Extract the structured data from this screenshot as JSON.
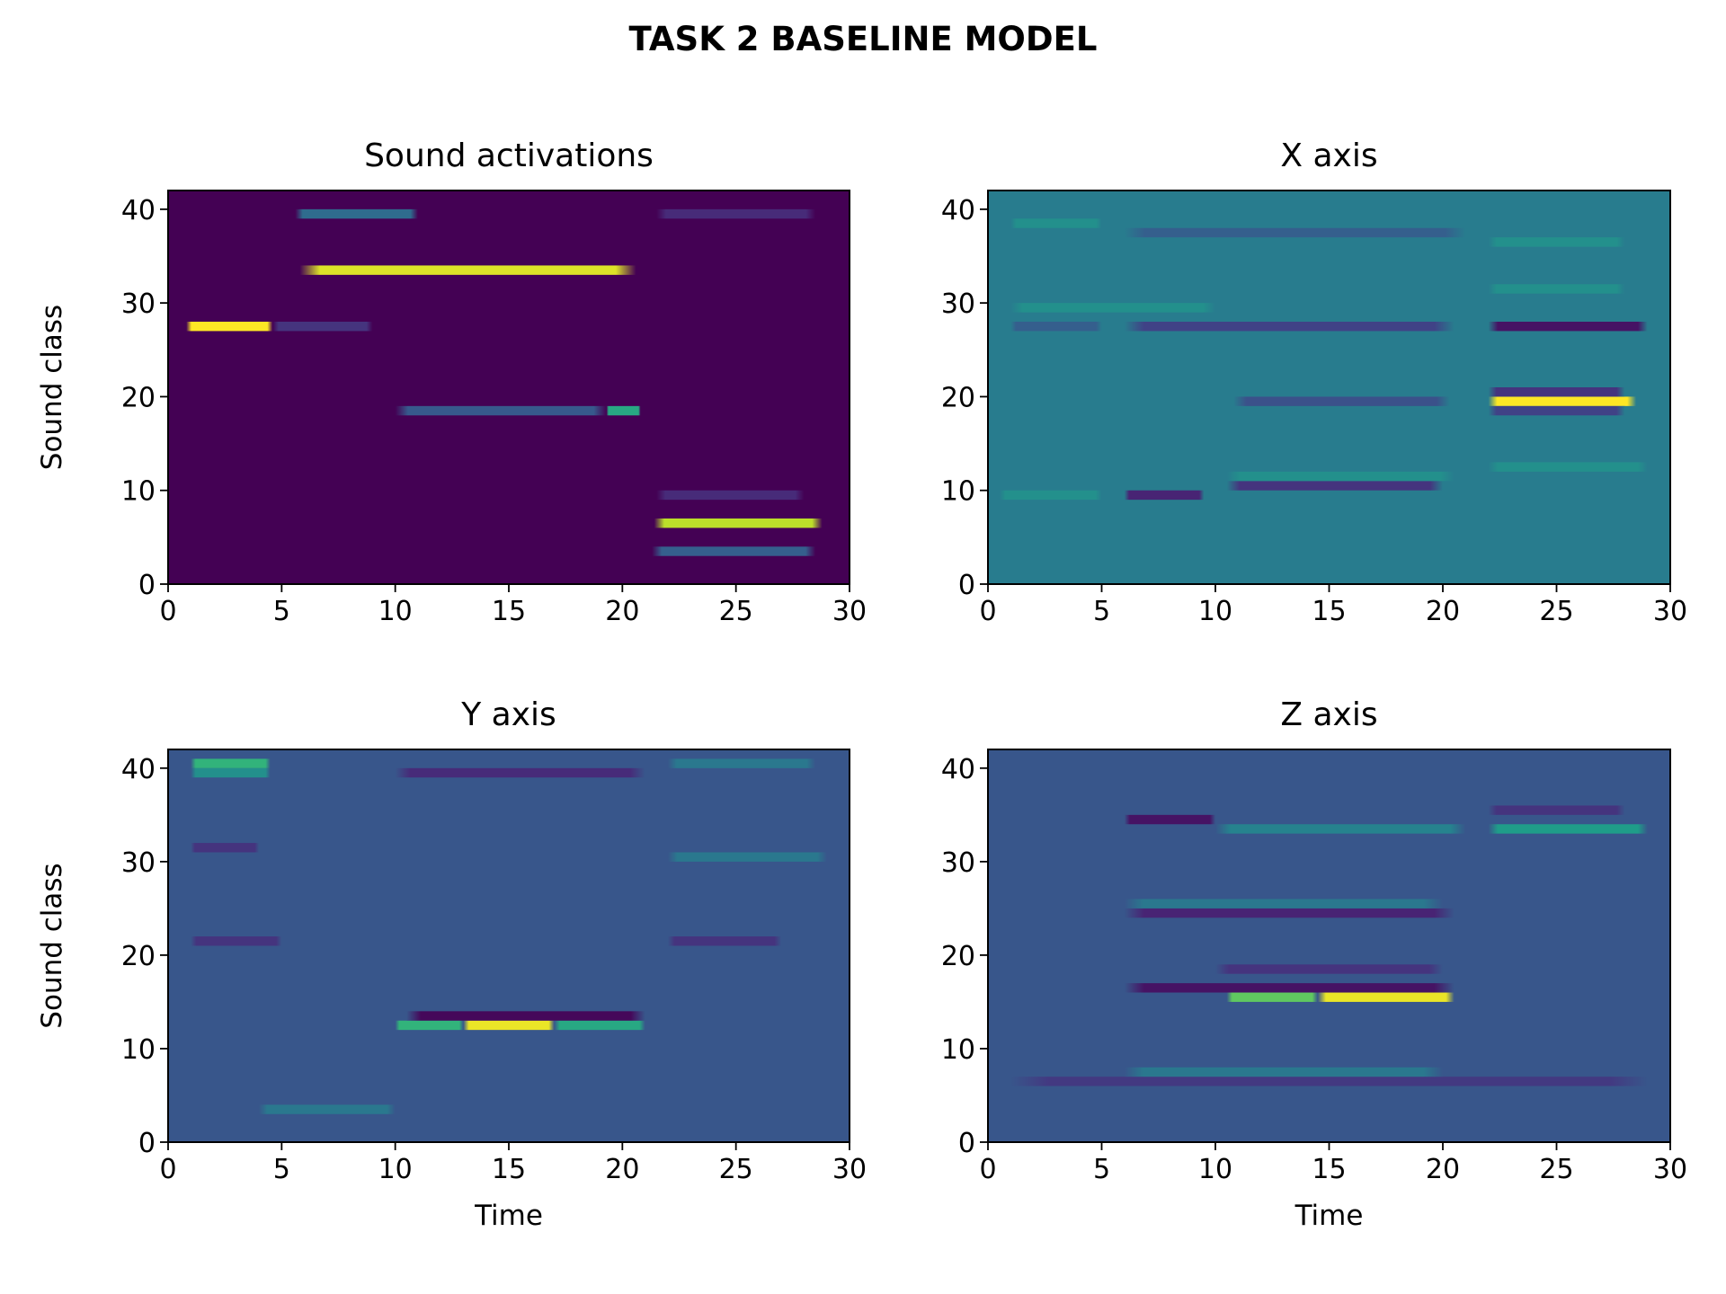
{
  "chart_data": {
    "type": "heatmap",
    "title": "TASK 2 BASELINE MODEL",
    "colormap": "viridis",
    "panels": [
      {
        "title": "Sound activations",
        "xlabel": "",
        "ylabel": "Sound class",
        "xlim": [
          0,
          30
        ],
        "ylim": [
          0,
          42
        ],
        "xticks": [
          0,
          5,
          10,
          15,
          20,
          25,
          30
        ],
        "yticks": [
          0,
          10,
          20,
          30,
          40
        ],
        "background": 0.0,
        "bands": [
          {
            "class": 27,
            "t0": 0.8,
            "t1": 4.6,
            "value": 1.0
          },
          {
            "class": 27,
            "t0": 4.6,
            "t1": 9.0,
            "value": 0.15
          },
          {
            "class": 33,
            "t0": 5.8,
            "t1": 20.6,
            "value": 0.95
          },
          {
            "class": 39,
            "t0": 5.6,
            "t1": 11.0,
            "value": 0.35
          },
          {
            "class": 18,
            "t0": 10.0,
            "t1": 19.3,
            "value": 0.28
          },
          {
            "class": 18,
            "t0": 19.3,
            "t1": 20.8,
            "value": 0.6
          },
          {
            "class": 6,
            "t0": 21.4,
            "t1": 28.8,
            "value": 0.9
          },
          {
            "class": 3,
            "t0": 21.3,
            "t1": 28.5,
            "value": 0.3
          },
          {
            "class": 9,
            "t0": 21.5,
            "t1": 28.0,
            "value": 0.12
          },
          {
            "class": 39,
            "t0": 21.5,
            "t1": 28.5,
            "value": 0.12
          }
        ]
      },
      {
        "title": "X axis",
        "xlabel": "",
        "ylabel": "",
        "xlim": [
          0,
          30
        ],
        "ylim": [
          0,
          42
        ],
        "xticks": [
          0,
          5,
          10,
          15,
          20,
          25,
          30
        ],
        "yticks": [
          0,
          10,
          20,
          30,
          40
        ],
        "background": 0.42,
        "bands": [
          {
            "class": 19,
            "t0": 22.0,
            "t1": 28.5,
            "value": 1.0
          },
          {
            "class": 20,
            "t0": 22.0,
            "t1": 28.0,
            "value": 0.15
          },
          {
            "class": 18,
            "t0": 22.0,
            "t1": 28.0,
            "value": 0.2
          },
          {
            "class": 19,
            "t0": 10.8,
            "t1": 20.3,
            "value": 0.25
          },
          {
            "class": 27,
            "t0": 1.0,
            "t1": 5.0,
            "value": 0.3
          },
          {
            "class": 27,
            "t0": 6.0,
            "t1": 20.5,
            "value": 0.2
          },
          {
            "class": 27,
            "t0": 22.0,
            "t1": 29.0,
            "value": 0.05
          },
          {
            "class": 9,
            "t0": 6.0,
            "t1": 9.5,
            "value": 0.1
          },
          {
            "class": 9,
            "t0": 0.5,
            "t1": 5.0,
            "value": 0.5
          },
          {
            "class": 10,
            "t0": 10.5,
            "t1": 20.0,
            "value": 0.15
          },
          {
            "class": 11,
            "t0": 10.5,
            "t1": 20.5,
            "value": 0.5
          },
          {
            "class": 37,
            "t0": 6.0,
            "t1": 21.0,
            "value": 0.3
          },
          {
            "class": 36,
            "t0": 22.0,
            "t1": 28.0,
            "value": 0.5
          },
          {
            "class": 38,
            "t0": 1.0,
            "t1": 5.0,
            "value": 0.5
          },
          {
            "class": 12,
            "t0": 22.0,
            "t1": 29.0,
            "value": 0.5
          },
          {
            "class": 29,
            "t0": 1.0,
            "t1": 10.0,
            "value": 0.5
          },
          {
            "class": 31,
            "t0": 22.0,
            "t1": 28.0,
            "value": 0.5
          }
        ]
      },
      {
        "title": "Y axis",
        "xlabel": "Time",
        "ylabel": "Sound class",
        "xlim": [
          0,
          30
        ],
        "ylim": [
          0,
          42
        ],
        "xticks": [
          0,
          5,
          10,
          15,
          20,
          25,
          30
        ],
        "yticks": [
          0,
          10,
          20,
          30,
          40
        ],
        "background": 0.27,
        "bands": [
          {
            "class": 40,
            "t0": 1.0,
            "t1": 4.5,
            "value": 0.65
          },
          {
            "class": 39,
            "t0": 1.0,
            "t1": 4.5,
            "value": 0.5
          },
          {
            "class": 12,
            "t0": 10.0,
            "t1": 13.0,
            "value": 0.65
          },
          {
            "class": 12,
            "t0": 13.0,
            "t1": 17.0,
            "value": 0.97
          },
          {
            "class": 12,
            "t0": 17.0,
            "t1": 21.0,
            "value": 0.6
          },
          {
            "class": 13,
            "t0": 10.5,
            "t1": 21.0,
            "value": 0.02
          },
          {
            "class": 39,
            "t0": 10.0,
            "t1": 21.0,
            "value": 0.12
          },
          {
            "class": 40,
            "t0": 22.0,
            "t1": 28.5,
            "value": 0.4
          },
          {
            "class": 3,
            "t0": 4.0,
            "t1": 10.0,
            "value": 0.4
          },
          {
            "class": 21,
            "t0": 1.0,
            "t1": 5.0,
            "value": 0.15
          },
          {
            "class": 21,
            "t0": 22.0,
            "t1": 27.0,
            "value": 0.15
          },
          {
            "class": 31,
            "t0": 1.0,
            "t1": 4.0,
            "value": 0.15
          },
          {
            "class": 30,
            "t0": 22.0,
            "t1": 29.0,
            "value": 0.4
          }
        ]
      },
      {
        "title": "Z axis",
        "xlabel": "Time",
        "ylabel": "",
        "xlim": [
          0,
          30
        ],
        "ylim": [
          0,
          42
        ],
        "xticks": [
          0,
          5,
          10,
          15,
          20,
          25,
          30
        ],
        "yticks": [
          0,
          10,
          20,
          30,
          40
        ],
        "background": 0.27,
        "bands": [
          {
            "class": 15,
            "t0": 10.5,
            "t1": 14.5,
            "value": 0.75
          },
          {
            "class": 15,
            "t0": 14.5,
            "t1": 20.5,
            "value": 0.97
          },
          {
            "class": 16,
            "t0": 6.0,
            "t1": 20.5,
            "value": 0.05
          },
          {
            "class": 24,
            "t0": 6.0,
            "t1": 20.5,
            "value": 0.1
          },
          {
            "class": 34,
            "t0": 6.0,
            "t1": 10.0,
            "value": 0.05
          },
          {
            "class": 33,
            "t0": 10.0,
            "t1": 21.0,
            "value": 0.45
          },
          {
            "class": 33,
            "t0": 22.0,
            "t1": 29.0,
            "value": 0.55
          },
          {
            "class": 35,
            "t0": 22.0,
            "t1": 28.0,
            "value": 0.15
          },
          {
            "class": 6,
            "t0": 1.0,
            "t1": 29.0,
            "value": 0.17
          },
          {
            "class": 7,
            "t0": 6.0,
            "t1": 20.0,
            "value": 0.4
          },
          {
            "class": 18,
            "t0": 10.0,
            "t1": 20.0,
            "value": 0.15
          },
          {
            "class": 25,
            "t0": 6.0,
            "t1": 20.0,
            "value": 0.4
          }
        ]
      }
    ]
  }
}
